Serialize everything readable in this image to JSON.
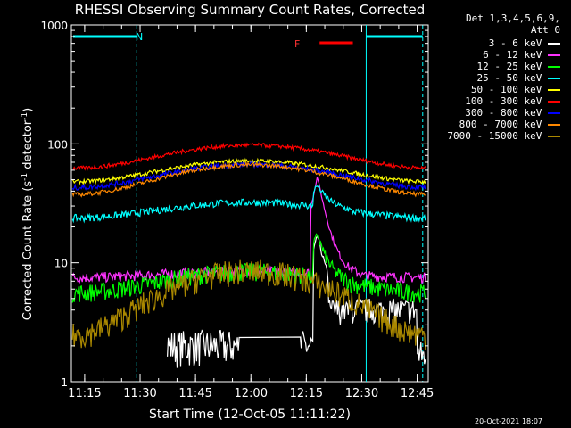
{
  "chart_data": {
    "type": "line",
    "title": "RHESSI Observing Summary Count Rates, Corrected",
    "xlabel": "Start Time (12-Oct-05 11:11:22)",
    "ylabel_main": "Corrected Count Rate (s",
    "ylabel_sup1": "-1",
    "ylabel_mid": " detector",
    "ylabel_sup2": "-1",
    "ylabel_end": ")",
    "yscale": "log",
    "ylim": [
      1,
      1000
    ],
    "y_ticks": [
      "1",
      "10",
      "100",
      "1000"
    ],
    "x_range_min": [
      11.19,
      12.8
    ],
    "x_ticks": [
      {
        "label": "11:15",
        "t": 11.25
      },
      {
        "label": "11:30",
        "t": 11.5
      },
      {
        "label": "11:45",
        "t": 11.75
      },
      {
        "label": "12:00",
        "t": 12.0
      },
      {
        "label": "12:15",
        "t": 12.25
      },
      {
        "label": "12:30",
        "t": 12.5
      },
      {
        "label": "12:45",
        "t": 12.75
      }
    ],
    "detectors_label": "Det 1,3,4,5,6,9,",
    "attenuator_label": "Att 0",
    "night_label": "N",
    "flare_label": "F",
    "timestamp": "20-Oct-2021 18:07",
    "series": [
      {
        "name": "3 - 6 keV",
        "color": "#ffffff"
      },
      {
        "name": "6 - 12 keV",
        "color": "#ff33ff"
      },
      {
        "name": "12 - 25 keV",
        "color": "#00ff00"
      },
      {
        "name": "25 - 50 keV",
        "color": "#00ffff"
      },
      {
        "name": "50 - 100 keV",
        "color": "#ffff00"
      },
      {
        "name": "100 - 300 keV",
        "color": "#ff0000"
      },
      {
        "name": "300 - 800 keV",
        "color": "#0000ff"
      },
      {
        "name": "800 - 7000 keV",
        "color": "#ff8800"
      },
      {
        "name": "7000 - 15000 keV",
        "color": "#aa8800"
      }
    ]
  }
}
